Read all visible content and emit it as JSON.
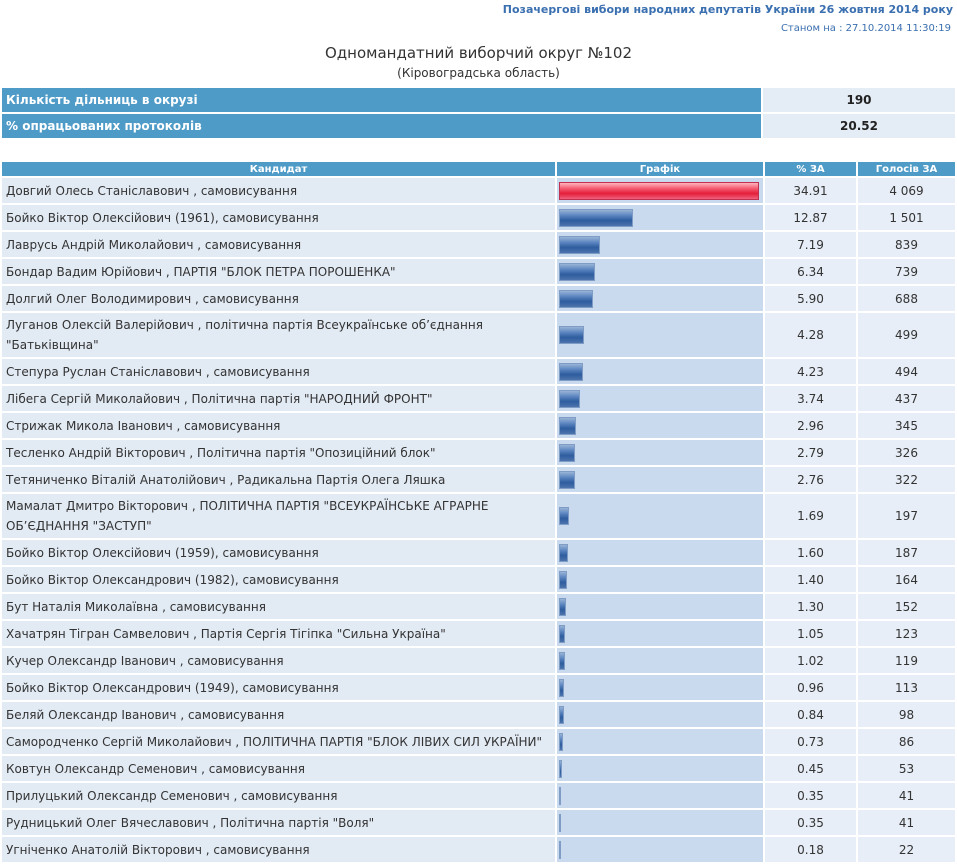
{
  "header": {
    "election_title": "Позачергові вибори народних депутатів України 26 жовтня 2014 року",
    "status_date": "Станом на : 27.10.2014 11:30:19"
  },
  "district": {
    "title": "Одномандатний виборчий округ №102",
    "region": "(Кіровоградська область)"
  },
  "summary": {
    "stations_label": "Кількість дільниць в окрузі",
    "stations_value": "190",
    "processed_label": "% опрацьованих протоколів",
    "processed_value": "20.52"
  },
  "table": {
    "headers": [
      "Кандидат",
      "Графік",
      "% ЗА",
      "Голосів ЗА"
    ],
    "max_percent": 34.91,
    "colors": {
      "lead_bar": "#e41e3b",
      "bar": "#2e5c9e",
      "header_bg": "#4f9bc8"
    },
    "rows": [
      {
        "name": "Довгий Олесь Станіславович , самовисування",
        "pct": "34.91",
        "votes": "4 069",
        "pct_value": 34.91
      },
      {
        "name": "Бойко Віктор Олексійович (1961), самовисування",
        "pct": "12.87",
        "votes": "1 501",
        "pct_value": 12.87
      },
      {
        "name": "Лаврусь Андрій Миколайович , самовисування",
        "pct": "7.19",
        "votes": "839",
        "pct_value": 7.19
      },
      {
        "name": "Бондар Вадим Юрійович , ПАРТІЯ \"БЛОК ПЕТРА ПОРОШЕНКА\"",
        "pct": "6.34",
        "votes": "739",
        "pct_value": 6.34
      },
      {
        "name": "Долгий Олег Володимирович , самовисування",
        "pct": "5.90",
        "votes": "688",
        "pct_value": 5.9
      },
      {
        "name": "Луганов Олексій Валерійович , політична партія Всеукраїнське об’єднання \"Батьківщина\"",
        "pct": "4.28",
        "votes": "499",
        "pct_value": 4.28,
        "tall": true
      },
      {
        "name": "Степура Руслан Станіславович , самовисування",
        "pct": "4.23",
        "votes": "494",
        "pct_value": 4.23
      },
      {
        "name": "Лібега Сергій Миколайович , Політична партія \"НАРОДНИЙ ФРОНТ\"",
        "pct": "3.74",
        "votes": "437",
        "pct_value": 3.74
      },
      {
        "name": "Стрижак Микола Іванович , самовисування",
        "pct": "2.96",
        "votes": "345",
        "pct_value": 2.96
      },
      {
        "name": "Тесленко Андрій Вікторович , Політична партія \"Опозиційний блок\"",
        "pct": "2.79",
        "votes": "326",
        "pct_value": 2.79
      },
      {
        "name": "Тетяниченко Віталій Анатолійович , Радикальна Партія Олега Ляшка",
        "pct": "2.76",
        "votes": "322",
        "pct_value": 2.76
      },
      {
        "name": "Мамалат Дмитро Вікторович , ПОЛІТИЧНА ПАРТІЯ \"ВСЕУКРАЇНСЬКЕ АГРАРНЕ ОБ’ЄДНАННЯ \"ЗАСТУП\"",
        "pct": "1.69",
        "votes": "197",
        "pct_value": 1.69,
        "tall": true
      },
      {
        "name": "Бойко Віктор Олексійович (1959), самовисування",
        "pct": "1.60",
        "votes": "187",
        "pct_value": 1.6
      },
      {
        "name": "Бойко Віктор Олександрович (1982), самовисування",
        "pct": "1.40",
        "votes": "164",
        "pct_value": 1.4
      },
      {
        "name": "Бут Наталія Миколаївна , самовисування",
        "pct": "1.30",
        "votes": "152",
        "pct_value": 1.3
      },
      {
        "name": "Хачатрян Тігран Самвелович , Партія Сергія Тігіпка \"Сильна Україна\"",
        "pct": "1.05",
        "votes": "123",
        "pct_value": 1.05
      },
      {
        "name": "Кучер Олександр Іванович , самовисування",
        "pct": "1.02",
        "votes": "119",
        "pct_value": 1.02
      },
      {
        "name": "Бойко Віктор Олександрович (1949), самовисування",
        "pct": "0.96",
        "votes": "113",
        "pct_value": 0.96
      },
      {
        "name": "Беляй Олександр Іванович , самовисування",
        "pct": "0.84",
        "votes": "98",
        "pct_value": 0.84
      },
      {
        "name": "Самородченко Сергій Миколайович , ПОЛІТИЧНА ПАРТІЯ \"БЛОК ЛІВИХ СИЛ УКРАЇНИ\"",
        "pct": "0.73",
        "votes": "86",
        "pct_value": 0.73
      },
      {
        "name": "Ковтун Олександр Семенович , самовисування",
        "pct": "0.45",
        "votes": "53",
        "pct_value": 0.45
      },
      {
        "name": "Прилуцький Олександр Семенович , самовисування",
        "pct": "0.35",
        "votes": "41",
        "pct_value": 0.35
      },
      {
        "name": "Рудницький Олег Вячеславович , Політична партія \"Воля\"",
        "pct": "0.35",
        "votes": "41",
        "pct_value": 0.35
      },
      {
        "name": "Угніченко Анатолій Вікторович , самовисування",
        "pct": "0.18",
        "votes": "22",
        "pct_value": 0.18
      }
    ]
  }
}
